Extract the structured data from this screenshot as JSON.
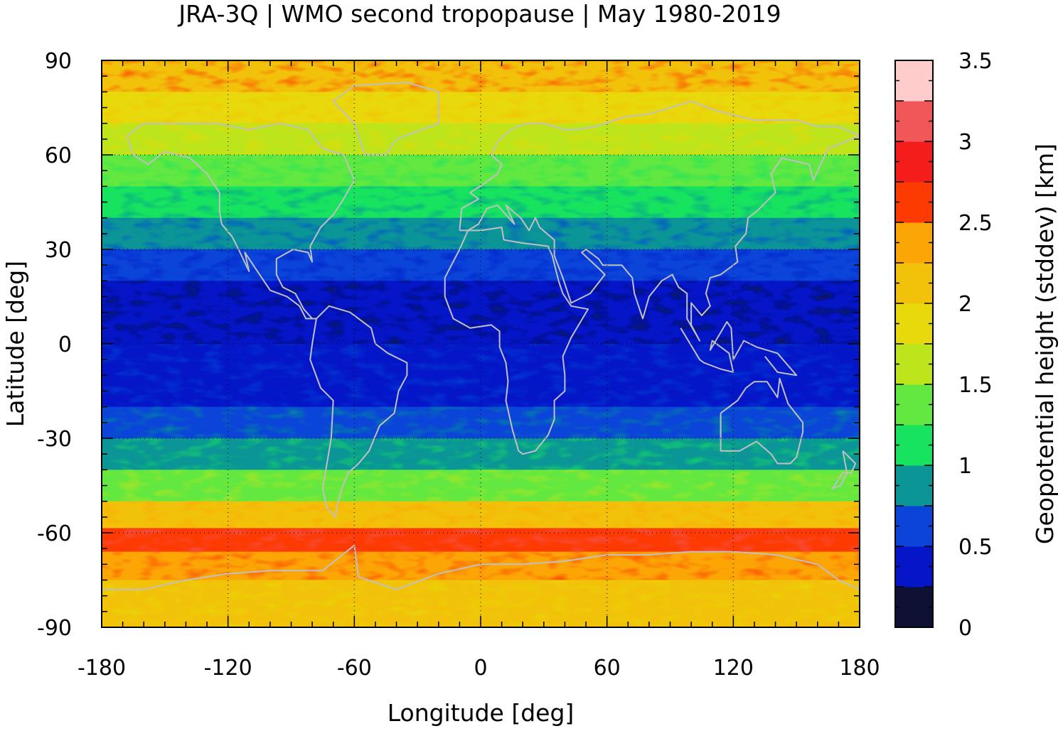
{
  "chart_data": {
    "type": "heatmap",
    "title": "JRA-3Q | WMO second tropopause | May 1980-2019",
    "xlabel": "Longitude [deg]",
    "ylabel": "Latitude [deg]",
    "colorbar_label": "Geopotential height (stddev) [km]",
    "xlim": [
      -180,
      180
    ],
    "ylim": [
      -90,
      90
    ],
    "x_ticks": [
      -180,
      -120,
      -60,
      0,
      60,
      120,
      180
    ],
    "y_ticks": [
      90,
      60,
      30,
      0,
      -30,
      -60,
      -90
    ],
    "x_tick_labels": [
      "-180",
      "-120",
      "-60",
      "0",
      "60",
      "120",
      "180"
    ],
    "y_tick_labels": [
      "90",
      "60",
      "30",
      "0",
      "-30",
      "-60",
      "-90"
    ],
    "grid": true,
    "coastlines": true,
    "coastline_color": "#c0c0c0",
    "colorbar": {
      "range": [
        0,
        3.5
      ],
      "tick_values": [
        0,
        0.5,
        1,
        1.5,
        2,
        2.5,
        3,
        3.5
      ],
      "tick_labels": [
        "0",
        "0.5",
        "1",
        "1.5",
        "2",
        "2.5",
        "3",
        "3.5"
      ],
      "colors": [
        "#0d1133",
        "#0416c8",
        "#0a44d8",
        "#0b9596",
        "#17e35f",
        "#62e840",
        "#bde51c",
        "#e8d90c",
        "#f2c20a",
        "#fca606",
        "#fe3a03",
        "#f51c1c",
        "#f15758",
        "#ffcccc"
      ]
    },
    "latitude_profile": [
      {
        "lat": 85,
        "value": 2.2
      },
      {
        "lat": 75,
        "value": 1.9
      },
      {
        "lat": 65,
        "value": 1.5
      },
      {
        "lat": 55,
        "value": 1.3
      },
      {
        "lat": 45,
        "value": 1.1
      },
      {
        "lat": 35,
        "value": 0.9
      },
      {
        "lat": 25,
        "value": 0.7
      },
      {
        "lat": 15,
        "value": 0.45
      },
      {
        "lat": 5,
        "value": 0.4
      },
      {
        "lat": -5,
        "value": 0.35
      },
      {
        "lat": -15,
        "value": 0.4
      },
      {
        "lat": -25,
        "value": 0.6
      },
      {
        "lat": -35,
        "value": 0.9
      },
      {
        "lat": -45,
        "value": 1.4
      },
      {
        "lat": -55,
        "value": 2.1
      },
      {
        "lat": -62,
        "value": 2.7
      },
      {
        "lat": -70,
        "value": 2.3
      },
      {
        "lat": -80,
        "value": 2.2
      },
      {
        "lat": -88,
        "value": 2.1
      }
    ]
  }
}
